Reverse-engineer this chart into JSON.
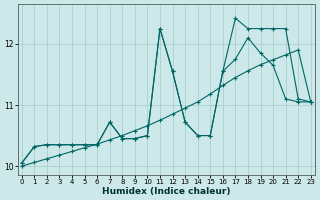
{
  "xlabel": "Humidex (Indice chaleur)",
  "bg_color": "#cce8e8",
  "line_color": "#006666",
  "grid_color": "#aacfcf",
  "xlim": [
    -0.3,
    23.3
  ],
  "ylim": [
    9.85,
    12.65
  ],
  "xticks": [
    0,
    1,
    2,
    3,
    4,
    5,
    6,
    7,
    8,
    9,
    10,
    11,
    12,
    13,
    14,
    15,
    16,
    17,
    18,
    19,
    20,
    21,
    22,
    23
  ],
  "yticks": [
    10,
    11,
    12
  ],
  "series1_x": [
    0,
    1,
    2,
    3,
    4,
    5,
    6,
    7,
    8,
    9,
    10,
    11,
    12,
    13,
    14,
    15,
    16,
    17,
    18,
    19,
    20,
    21,
    22,
    23
  ],
  "series1_y": [
    10.0,
    10.06,
    10.12,
    10.18,
    10.24,
    10.3,
    10.36,
    10.43,
    10.5,
    10.58,
    10.66,
    10.75,
    10.85,
    10.95,
    11.05,
    11.18,
    11.32,
    11.45,
    11.56,
    11.66,
    11.74,
    11.82,
    11.9,
    11.05
  ],
  "series2_x": [
    0,
    1,
    2,
    3,
    4,
    5,
    6,
    7,
    8,
    9,
    10,
    11,
    12,
    13,
    14,
    15,
    16,
    17,
    18,
    19,
    20,
    21,
    22,
    23
  ],
  "series2_y": [
    10.05,
    10.32,
    10.35,
    10.35,
    10.35,
    10.35,
    10.35,
    10.72,
    10.45,
    10.45,
    10.5,
    12.25,
    11.55,
    10.72,
    10.5,
    10.5,
    11.55,
    11.75,
    12.1,
    11.85,
    11.65,
    11.1,
    11.05,
    11.05
  ],
  "series3_x": [
    0,
    1,
    2,
    3,
    4,
    5,
    6,
    7,
    8,
    9,
    10,
    11,
    12,
    13,
    14,
    15,
    16,
    17,
    18,
    19,
    20,
    21,
    22,
    23
  ],
  "series3_y": [
    10.05,
    10.32,
    10.35,
    10.35,
    10.35,
    10.35,
    10.35,
    10.72,
    10.45,
    10.45,
    10.5,
    12.25,
    11.55,
    10.72,
    10.5,
    10.5,
    11.55,
    12.42,
    12.25,
    12.25,
    12.25,
    12.25,
    11.1,
    11.05
  ]
}
